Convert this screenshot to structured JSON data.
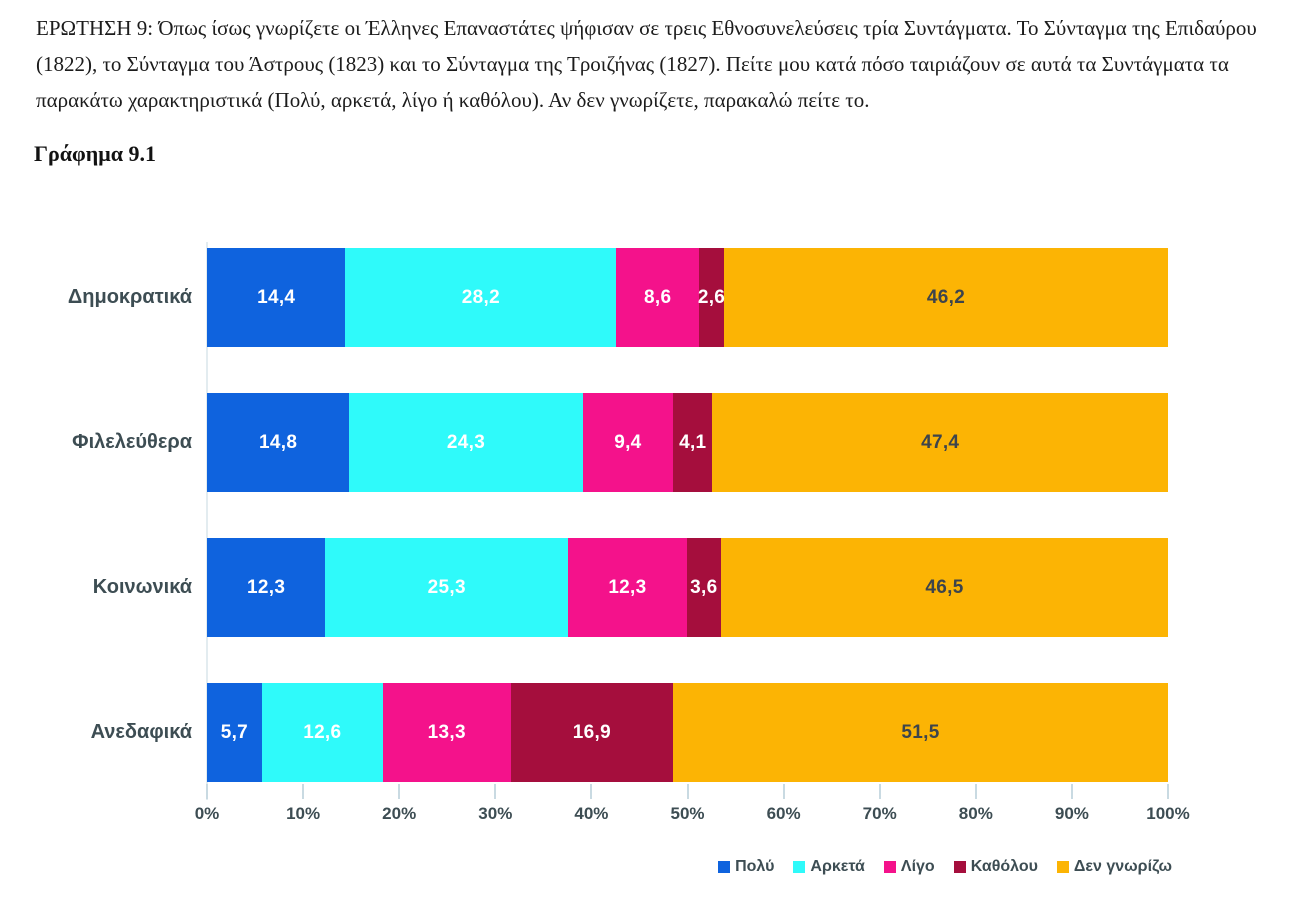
{
  "page": {
    "question_text": "ΕΡΩΤΗΣΗ 9: Όπως ίσως γνωρίζετε οι Έλληνες Επαναστάτες ψήφισαν σε τρεις Εθνοσυνελεύσεις τρία Συντάγματα. Το Σύνταγμα της Επιδαύρου (1822), το Σύνταγμα του Άστρους (1823) και το Σύνταγμα της Τροιζήνας (1827). Πείτε μου κατά πόσο ταιριάζουν σε αυτά τα Συντάγματα τα παρακάτω χαρακτηριστικά (Πολύ, αρκετά, λίγο ή καθόλου). Αν δεν γνωρίζετε, παρακαλώ πείτε το.",
    "figure_label": "Γράφημα 9.1"
  },
  "chart_data": {
    "type": "bar",
    "orientation": "horizontal",
    "stacked": true,
    "categories": [
      "Δημοκρατικά",
      "Φιλελεύθερα",
      "Κοινωνικά",
      "Ανεδαφικά"
    ],
    "series": [
      {
        "name": "Πολύ",
        "color": "#0f63de",
        "label_color": "#ffffff",
        "values": [
          14.4,
          14.8,
          12.3,
          5.7
        ]
      },
      {
        "name": "Αρκετά",
        "color": "#2ffafa",
        "label_color": "#ffffff",
        "values": [
          28.2,
          24.3,
          25.3,
          12.6
        ]
      },
      {
        "name": "Λίγο",
        "color": "#f4128b",
        "label_color": "#ffffff",
        "values": [
          8.6,
          9.4,
          12.3,
          13.3
        ]
      },
      {
        "name": "Καθόλου",
        "color": "#a50e3d",
        "label_color": "#ffffff",
        "values": [
          2.6,
          4.1,
          3.6,
          16.9
        ]
      },
      {
        "name": "Δεν γνωρίζω",
        "color": "#fcb404",
        "label_color": "#3d444c",
        "values": [
          46.2,
          47.4,
          46.5,
          51.5
        ]
      }
    ],
    "x_ticks": [
      "0%",
      "10%",
      "20%",
      "30%",
      "40%",
      "50%",
      "60%",
      "70%",
      "80%",
      "90%",
      "100%"
    ],
    "xlim": [
      0,
      100
    ],
    "value_decimal_separator": ",",
    "legend_position": "bottom-right",
    "grid": false
  }
}
